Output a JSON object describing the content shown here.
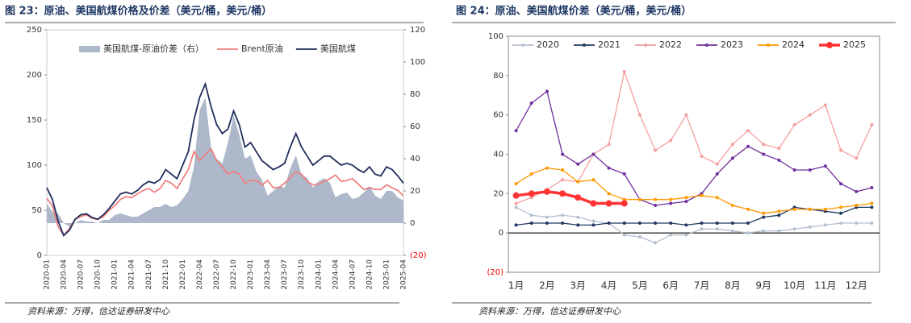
{
  "chart_data": [
    {
      "type": "line",
      "title": "图 23：原油、美国航煤价格及价差（美元/桶，美元/桶）",
      "source": "资料来源：万得，信达证券研发中心",
      "categories": [
        "2020-01",
        null,
        null,
        "2020-04",
        null,
        null,
        "2020-07",
        null,
        null,
        "2020-10",
        null,
        null,
        "2021-01",
        null,
        null,
        "2021-04",
        null,
        null,
        "2021-07",
        null,
        null,
        "2021-10",
        null,
        null,
        "2022-01",
        null,
        null,
        "2022-04",
        null,
        null,
        "2022-07",
        null,
        null,
        "2022-10",
        null,
        null,
        "2023-01",
        null,
        null,
        "2023-04",
        null,
        null,
        "2023-07",
        null,
        null,
        "2023-10",
        null,
        null,
        "2024-01",
        null,
        null,
        "2024-04",
        null,
        null,
        "2024-07",
        null,
        null,
        "2024-10",
        null,
        null,
        "2025-01",
        null,
        null,
        "2025-04"
      ],
      "series": [
        {
          "name": "美国航煤-原油价差（右）",
          "color": "#adb9ca",
          "axis": "y2",
          "style": "area",
          "values": [
            12,
            7,
            6,
            0,
            -2,
            0,
            2,
            1,
            1,
            0,
            2,
            2,
            5,
            6,
            5,
            4,
            4,
            6,
            8,
            10,
            10,
            12,
            10,
            11,
            15,
            20,
            35,
            70,
            78,
            47,
            40,
            37,
            50,
            67,
            55,
            40,
            42,
            32,
            27,
            17,
            20,
            23,
            22,
            34,
            42,
            30,
            28,
            22,
            26,
            28,
            25,
            16,
            18,
            19,
            15,
            16,
            19,
            23,
            17,
            15,
            20,
            20,
            16,
            14
          ]
        },
        {
          "name": "Brent原油",
          "color": "#f08080",
          "values": [
            63,
            55,
            32,
            22,
            30,
            40,
            43,
            45,
            41,
            40,
            43,
            50,
            55,
            62,
            65,
            64,
            68,
            72,
            74,
            70,
            74,
            83,
            80,
            74,
            85,
            95,
            115,
            105,
            112,
            118,
            105,
            98,
            90,
            93,
            90,
            80,
            83,
            83,
            78,
            83,
            75,
            75,
            80,
            86,
            93,
            90,
            82,
            78,
            79,
            82,
            85,
            89,
            82,
            83,
            85,
            79,
            73,
            75,
            73,
            73,
            78,
            75,
            72,
            66
          ]
        },
        {
          "name": "美国航煤",
          "color": "#1f2d5c",
          "values": [
            75,
            62,
            38,
            22,
            28,
            40,
            45,
            46,
            42,
            40,
            45,
            52,
            60,
            68,
            70,
            68,
            72,
            78,
            82,
            80,
            84,
            95,
            90,
            85,
            100,
            115,
            150,
            175,
            190,
            165,
            145,
            135,
            140,
            160,
            145,
            120,
            125,
            115,
            105,
            100,
            95,
            98,
            102,
            120,
            135,
            120,
            110,
            100,
            105,
            110,
            110,
            105,
            100,
            102,
            100,
            95,
            92,
            98,
            90,
            88,
            98,
            95,
            88,
            80
          ]
        }
      ],
      "ylim": [
        0,
        250
      ],
      "yticks": [
        0,
        50,
        100,
        150,
        200,
        250
      ],
      "y2lim": [
        -20,
        120
      ],
      "y2ticks": [
        {
          "value": -20,
          "label": "(20)"
        },
        0,
        20,
        40,
        60,
        80,
        100,
        120
      ],
      "grid": false,
      "legend": "top"
    },
    {
      "type": "line",
      "title": "图 24：原油、美国航煤价差（美元/桶，美元/桶）",
      "source": "资料来源：万得，信达证券研发中心",
      "categories": [
        "1月",
        null,
        "2月",
        null,
        "3月",
        null,
        "4月",
        null,
        "5月",
        null,
        "6月",
        null,
        "7月",
        null,
        "8月",
        null,
        "9月",
        null,
        "10月",
        null,
        "11月",
        null,
        "12月",
        null
      ],
      "series": [
        {
          "name": "2020",
          "color": "#b4bfcf",
          "values": [
            13,
            9,
            8,
            9,
            8,
            6,
            5,
            -1,
            -2,
            -5,
            -1,
            -1,
            2,
            2,
            1,
            0,
            1,
            1,
            2,
            3,
            4,
            5,
            5,
            5
          ]
        },
        {
          "name": "2021",
          "color": "#1f3864",
          "values": [
            4,
            5,
            5,
            5,
            4,
            4,
            5,
            5,
            5,
            5,
            5,
            4,
            5,
            5,
            5,
            5,
            8,
            9,
            13,
            12,
            11,
            10,
            13,
            13
          ]
        },
        {
          "name": "2022",
          "color": "#f4a0a0",
          "values": [
            15,
            18,
            22,
            27,
            26,
            40,
            45,
            82,
            60,
            42,
            47,
            60,
            39,
            35,
            45,
            52,
            45,
            43,
            55,
            60,
            65,
            42,
            38,
            55
          ]
        },
        {
          "name": "2023",
          "color": "#7030a0",
          "values": [
            52,
            66,
            72,
            40,
            35,
            40,
            33,
            30,
            17,
            14,
            15,
            16,
            20,
            30,
            38,
            44,
            40,
            37,
            32,
            32,
            34,
            25,
            21,
            23
          ]
        },
        {
          "name": "2024",
          "color": "#ff9900",
          "values": [
            25,
            30,
            33,
            32,
            26,
            27,
            20,
            17,
            17,
            17,
            17,
            18,
            19,
            18,
            14,
            12,
            10,
            11,
            12,
            12,
            12,
            13,
            14,
            15
          ]
        },
        {
          "name": "2025",
          "color": "#ff3333",
          "bold": true,
          "values": [
            19,
            20,
            21,
            20,
            18,
            15,
            15,
            15,
            null,
            null,
            null,
            null,
            null,
            null,
            null,
            null,
            null,
            null,
            null,
            null,
            null,
            null,
            null,
            null
          ]
        }
      ],
      "ylim": [
        -20,
        100
      ],
      "yticks": [
        {
          "value": -20,
          "label": "(20)"
        },
        0,
        20,
        40,
        60,
        80,
        100
      ],
      "grid": false,
      "legend": "top"
    }
  ]
}
